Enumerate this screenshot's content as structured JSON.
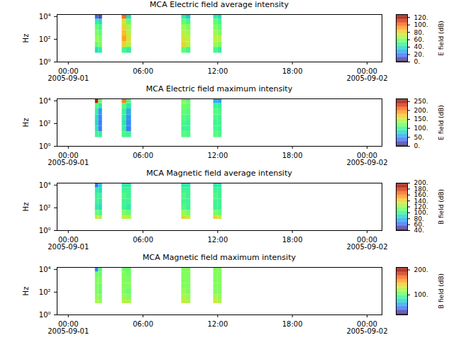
{
  "chart_data": [
    {
      "type": "heatmap",
      "title": "MCA  Electric field average intensity",
      "ylabel": "Hz",
      "log": "y",
      "xlim": [
        "2005-08-31T23:06",
        "2005-09-02T01:12"
      ],
      "xticks": [
        {
          "value": "2005-09-01T00:00",
          "label": "00:00\n2005-09-01"
        },
        {
          "value": "2005-09-01T06:00",
          "label": "06:00"
        },
        {
          "value": "2005-09-01T12:00",
          "label": "12:00"
        },
        {
          "value": "2005-09-01T18:00",
          "label": "18:00"
        },
        {
          "value": "2005-09-02T00:00",
          "label": "00:00\n2005-09-02"
        }
      ],
      "ylim": [
        1,
        15000
      ],
      "yticks": [
        {
          "value": 1,
          "label": "10⁰"
        },
        {
          "value": 100,
          "label": "10²"
        },
        {
          "value": 10000,
          "label": "10⁴"
        }
      ],
      "time_bins": [
        [
          "2005-09-01T02:10",
          "2005-09-01T02:26"
        ],
        [
          "2005-09-01T02:26",
          "2005-09-01T02:44"
        ],
        [
          "2005-09-01T04:19",
          "2005-09-01T04:41"
        ],
        [
          "2005-09-01T04:41",
          "2005-09-01T05:04"
        ],
        [
          "2005-09-01T09:06",
          "2005-09-01T09:28"
        ],
        [
          "2005-09-01T09:28",
          "2005-09-01T09:50"
        ],
        [
          "2005-09-01T11:40",
          "2005-09-01T12:00"
        ],
        [
          "2005-09-01T12:00",
          "2005-09-01T12:20"
        ]
      ],
      "freq_bins": [
        6,
        20,
        60,
        200,
        600,
        2000,
        6000,
        15000
      ],
      "cells": [
        [
          40,
          55,
          65,
          60,
          55,
          45,
          15
        ],
        [
          45,
          60,
          60,
          55,
          50,
          40,
          10
        ],
        [
          50,
          80,
          90,
          85,
          80,
          75,
          100
        ],
        [
          45,
          70,
          75,
          70,
          65,
          55,
          40
        ],
        [
          55,
          80,
          75,
          70,
          65,
          55,
          45
        ],
        [
          50,
          70,
          70,
          65,
          60,
          50,
          35
        ],
        [
          50,
          65,
          70,
          65,
          60,
          55,
          45
        ],
        [
          45,
          60,
          70,
          60,
          55,
          50,
          40
        ]
      ],
      "colorbar": {
        "label": "E field (dB)",
        "range": [
          0,
          128
        ],
        "ticks": [
          {
            "value": 0,
            "label": "0."
          },
          {
            "value": 20,
            "label": "20."
          },
          {
            "value": 40,
            "label": "40."
          },
          {
            "value": 60,
            "label": "60."
          },
          {
            "value": 80,
            "label": "80."
          },
          {
            "value": 100,
            "label": "100."
          },
          {
            "value": 120,
            "label": "120."
          }
        ]
      }
    },
    {
      "type": "heatmap",
      "title": "MCA  Electric field maximum intensity",
      "ylabel": "Hz",
      "log": "y",
      "xlim": [
        "2005-08-31T23:06",
        "2005-09-02T01:12"
      ],
      "xticks": [
        {
          "value": "2005-09-01T00:00",
          "label": "00:00\n2005-09-01"
        },
        {
          "value": "2005-09-01T06:00",
          "label": "06:00"
        },
        {
          "value": "2005-09-01T12:00",
          "label": "12:00"
        },
        {
          "value": "2005-09-01T18:00",
          "label": "18:00"
        },
        {
          "value": "2005-09-02T00:00",
          "label": "00:00\n2005-09-02"
        }
      ],
      "ylim": [
        1,
        15000
      ],
      "yticks": [
        {
          "value": 1,
          "label": "10⁰"
        },
        {
          "value": 100,
          "label": "10²"
        },
        {
          "value": 10000,
          "label": "10⁴"
        }
      ],
      "time_bins": [
        [
          "2005-09-01T02:10",
          "2005-09-01T02:26"
        ],
        [
          "2005-09-01T02:26",
          "2005-09-01T02:44"
        ],
        [
          "2005-09-01T04:19",
          "2005-09-01T04:41"
        ],
        [
          "2005-09-01T04:41",
          "2005-09-01T05:04"
        ],
        [
          "2005-09-01T09:06",
          "2005-09-01T09:28"
        ],
        [
          "2005-09-01T09:28",
          "2005-09-01T09:50"
        ],
        [
          "2005-09-01T11:40",
          "2005-09-01T12:00"
        ],
        [
          "2005-09-01T12:00",
          "2005-09-01T12:20"
        ]
      ],
      "freq_bins": [
        6,
        20,
        60,
        200,
        600,
        2000,
        6000,
        15000
      ],
      "cells": [
        [
          100,
          90,
          80,
          85,
          95,
          110,
          240
        ],
        [
          95,
          40,
          40,
          45,
          50,
          90,
          120
        ],
        [
          105,
          95,
          90,
          95,
          100,
          110,
          200
        ],
        [
          100,
          40,
          45,
          50,
          60,
          90,
          110
        ],
        [
          110,
          100,
          105,
          110,
          115,
          120,
          125
        ],
        [
          105,
          100,
          100,
          105,
          110,
          115,
          115
        ],
        [
          110,
          105,
          100,
          105,
          110,
          100,
          60
        ],
        [
          105,
          100,
          100,
          100,
          105,
          95,
          55
        ]
      ],
      "colorbar": {
        "label": "E field (dB)",
        "range": [
          0,
          265
        ],
        "ticks": [
          {
            "value": 0,
            "label": "0."
          },
          {
            "value": 50,
            "label": "50."
          },
          {
            "value": 100,
            "label": "100."
          },
          {
            "value": 150,
            "label": "150."
          },
          {
            "value": 200,
            "label": "200."
          },
          {
            "value": 250,
            "label": "250."
          }
        ]
      }
    },
    {
      "type": "heatmap",
      "title": "MCA  Magnetic field average intensity",
      "ylabel": "Hz",
      "log": "y",
      "xlim": [
        "2005-08-31T23:06",
        "2005-09-02T01:12"
      ],
      "xticks": [
        {
          "value": "2005-09-01T00:00",
          "label": "00:00\n2005-09-01"
        },
        {
          "value": "2005-09-01T06:00",
          "label": "06:00"
        },
        {
          "value": "2005-09-01T12:00",
          "label": "12:00"
        },
        {
          "value": "2005-09-01T18:00",
          "label": "18:00"
        },
        {
          "value": "2005-09-02T00:00",
          "label": "00:00\n2005-09-02"
        }
      ],
      "ylim": [
        1,
        15000
      ],
      "yticks": [
        {
          "value": 1,
          "label": "10⁰"
        },
        {
          "value": 100,
          "label": "10²"
        },
        {
          "value": 10000,
          "label": "10⁴"
        }
      ],
      "time_bins": [
        [
          "2005-09-01T02:10",
          "2005-09-01T02:26"
        ],
        [
          "2005-09-01T02:26",
          "2005-09-01T02:44"
        ],
        [
          "2005-09-01T04:19",
          "2005-09-01T04:41"
        ],
        [
          "2005-09-01T04:41",
          "2005-09-01T05:04"
        ],
        [
          "2005-09-01T09:06",
          "2005-09-01T09:28"
        ],
        [
          "2005-09-01T09:28",
          "2005-09-01T09:50"
        ],
        [
          "2005-09-01T11:40",
          "2005-09-01T12:00"
        ],
        [
          "2005-09-01T12:00",
          "2005-09-01T12:20"
        ]
      ],
      "freq_bins": [
        10,
        20,
        60,
        200,
        600,
        2000,
        6000,
        15000
      ],
      "cells": [
        [
          130,
          110,
          95,
          100,
          100,
          95,
          60
        ],
        [
          125,
          105,
          90,
          95,
          100,
          90,
          85
        ],
        [
          130,
          115,
          100,
          100,
          105,
          100,
          95
        ],
        [
          125,
          110,
          95,
          100,
          100,
          100,
          95
        ],
        [
          140,
          120,
          105,
          100,
          105,
          100,
          95
        ],
        [
          130,
          115,
          100,
          100,
          100,
          100,
          95
        ],
        [
          140,
          115,
          100,
          100,
          105,
          100,
          95
        ],
        [
          130,
          110,
          100,
          100,
          100,
          100,
          95
        ]
      ],
      "colorbar": {
        "label": "B field (dB)",
        "range": [
          40,
          200
        ],
        "ticks": [
          {
            "value": 40,
            "label": "40."
          },
          {
            "value": 60,
            "label": "60."
          },
          {
            "value": 80,
            "label": "80."
          },
          {
            "value": 100,
            "label": "100."
          },
          {
            "value": 120,
            "label": "120."
          },
          {
            "value": 140,
            "label": "140."
          },
          {
            "value": 160,
            "label": "160."
          },
          {
            "value": 180,
            "label": "180."
          },
          {
            "value": 200,
            "label": "200."
          }
        ]
      }
    },
    {
      "type": "heatmap",
      "title": "MCA  Magnetic field maximum intensity",
      "ylabel": "Hz",
      "log": "y",
      "xlim": [
        "2005-08-31T23:06",
        "2005-09-02T01:12"
      ],
      "xticks": [
        {
          "value": "2005-09-01T00:00",
          "label": "00:00\n2005-09-01"
        },
        {
          "value": "2005-09-01T06:00",
          "label": "06:00"
        },
        {
          "value": "2005-09-01T12:00",
          "label": "12:00"
        },
        {
          "value": "2005-09-01T18:00",
          "label": "18:00"
        },
        {
          "value": "2005-09-02T00:00",
          "label": "00:00\n2005-09-02"
        }
      ],
      "ylim": [
        1,
        15000
      ],
      "yticks": [
        {
          "value": 1,
          "label": "10⁰"
        },
        {
          "value": 100,
          "label": "10²"
        },
        {
          "value": 10000,
          "label": "10⁴"
        }
      ],
      "time_bins": [
        [
          "2005-09-01T02:10",
          "2005-09-01T02:26"
        ],
        [
          "2005-09-01T02:26",
          "2005-09-01T02:44"
        ],
        [
          "2005-09-01T04:19",
          "2005-09-01T04:41"
        ],
        [
          "2005-09-01T04:41",
          "2005-09-01T05:04"
        ],
        [
          "2005-09-01T09:06",
          "2005-09-01T09:28"
        ],
        [
          "2005-09-01T09:28",
          "2005-09-01T09:50"
        ],
        [
          "2005-09-01T11:40",
          "2005-09-01T12:00"
        ],
        [
          "2005-09-01T12:00",
          "2005-09-01T12:20"
        ]
      ],
      "freq_bins": [
        10,
        20,
        60,
        200,
        600,
        2000,
        6000,
        15000
      ],
      "cells": [
        [
          120,
          115,
          110,
          110,
          110,
          105,
          50
        ],
        [
          115,
          110,
          105,
          105,
          110,
          105,
          100
        ],
        [
          125,
          115,
          110,
          110,
          110,
          110,
          105
        ],
        [
          120,
          110,
          105,
          110,
          110,
          105,
          105
        ],
        [
          130,
          120,
          115,
          110,
          110,
          110,
          110
        ],
        [
          120,
          115,
          110,
          110,
          110,
          110,
          110
        ],
        [
          130,
          120,
          110,
          110,
          110,
          110,
          110
        ],
        [
          120,
          115,
          110,
          110,
          110,
          110,
          110
        ]
      ],
      "colorbar": {
        "label": "B field (dB)",
        "range": [
          20,
          210
        ],
        "ticks": [
          {
            "value": 100,
            "label": "100."
          },
          {
            "value": 200,
            "label": "200."
          }
        ]
      }
    }
  ]
}
